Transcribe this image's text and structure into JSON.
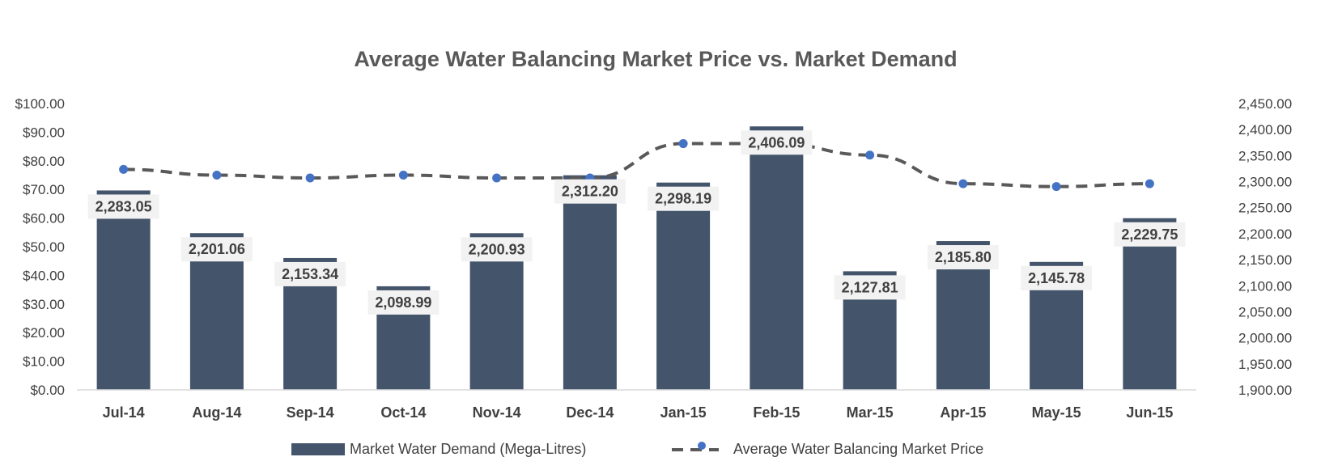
{
  "chart_data": {
    "type": "bar+line",
    "title": "Average Water Balancing Market Price vs. Market Demand",
    "categories": [
      "Jul-14",
      "Aug-14",
      "Sep-14",
      "Oct-14",
      "Nov-14",
      "Dec-14",
      "Jan-15",
      "Feb-15",
      "Mar-15",
      "Apr-15",
      "May-15",
      "Jun-15"
    ],
    "series": [
      {
        "name": "Market Water Demand (Mega-Litres)",
        "type": "bar",
        "axis": "right",
        "values": [
          2283.05,
          2201.06,
          2153.34,
          2098.99,
          2200.93,
          2312.2,
          2298.19,
          2406.09,
          2127.81,
          2185.8,
          2145.78,
          2229.75
        ],
        "labels": [
          "2,283.05",
          "2,201.06",
          "2,153.34",
          "2,098.99",
          "2,200.93",
          "2,312.20",
          "2,298.19",
          "2,406.09",
          "2,127.81",
          "2,185.80",
          "2,145.78",
          "2,229.75"
        ],
        "color": "#44546a"
      },
      {
        "name": "Average Water Balancing Market Price",
        "type": "line",
        "axis": "left",
        "values": [
          77,
          75,
          74,
          75,
          74,
          74,
          86,
          86,
          82,
          72,
          71,
          72
        ],
        "line_color": "#595959",
        "marker_color": "#4472c4",
        "dashed": true
      }
    ],
    "y_left": {
      "range": [
        0,
        100
      ],
      "ticks": [
        "$100.00",
        "$90.00",
        "$80.00",
        "$70.00",
        "$60.00",
        "$50.00",
        "$40.00",
        "$30.00",
        "$20.00",
        "$10.00",
        "$0.00"
      ]
    },
    "y_right": {
      "range": [
        1900,
        2450
      ],
      "ticks": [
        "2,450.00",
        "2,400.00",
        "2,350.00",
        "2,300.00",
        "2,250.00",
        "2,200.00",
        "2,150.00",
        "2,100.00",
        "2,050.00",
        "2,000.00",
        "1,950.00",
        "1,900.00"
      ]
    },
    "legend": "bottom",
    "grid": false
  }
}
